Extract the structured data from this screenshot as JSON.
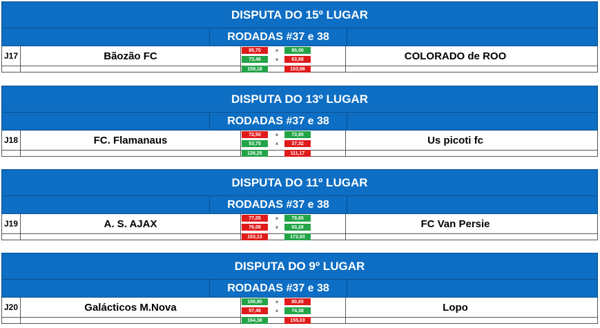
{
  "matches": [
    {
      "title": "DISPUTA DO 15º LUGAR",
      "rodadas": "RODADAS #37 e 38",
      "code": "J17",
      "team_left": "Bãozão FC",
      "team_right": "COLORADO de ROO",
      "r1_left": "85,70",
      "r1_right": "90,00",
      "r2_left": "73,48",
      "r2_right": "63,98",
      "tot_left": "159,18",
      "tot_right": "153,98",
      "x": "×",
      "colors": {
        "r1_left": "red",
        "r1_right": "green",
        "r2_left": "green",
        "r2_right": "red",
        "tot_left": "green",
        "tot_right": "red"
      }
    },
    {
      "title": "DISPUTA DO 13º LUGAR",
      "rodadas": "RODADAS #37 e 38",
      "code": "J18",
      "team_left": "FC. Flamanaus",
      "team_right": "Us picoti fc",
      "r1_left": "72,50",
      "r1_right": "73,85",
      "r2_left": "53,75",
      "r2_right": "37,32",
      "tot_left": "126,25",
      "tot_right": "111,17",
      "x": "×",
      "colors": {
        "r1_left": "red",
        "r1_right": "green",
        "r2_left": "green",
        "r2_right": "red",
        "tot_left": "green",
        "tot_right": "red"
      }
    },
    {
      "title": "DISPUTA DO 11º LUGAR",
      "rodadas": "RODADAS #37 e 38",
      "code": "J19",
      "team_left": "A. S. AJAX",
      "team_right": "FC Van Persie",
      "r1_left": "77,05",
      "r1_right": "79,65",
      "r2_left": "76,08",
      "r2_right": "93,28",
      "tot_left": "153,13",
      "tot_right": "172,93",
      "x": "×",
      "colors": {
        "r1_left": "red",
        "r1_right": "green",
        "r2_left": "red",
        "r2_right": "green",
        "tot_left": "red",
        "tot_right": "green"
      }
    },
    {
      "title": "DISPUTA DO 9º LUGAR",
      "rodadas": "RODADAS #37 e 38",
      "code": "J20",
      "team_left": "Galácticos M.Nova",
      "team_right": "Lopo",
      "r1_left": "106,90",
      "r1_right": "80,65",
      "r2_left": "57,48",
      "r2_right": "74,38",
      "tot_left": "164,38",
      "tot_right": "155,03",
      "x": "×",
      "colors": {
        "r1_left": "green",
        "r1_right": "red",
        "r2_left": "red",
        "r2_right": "green",
        "tot_left": "green",
        "tot_right": "red"
      }
    }
  ]
}
